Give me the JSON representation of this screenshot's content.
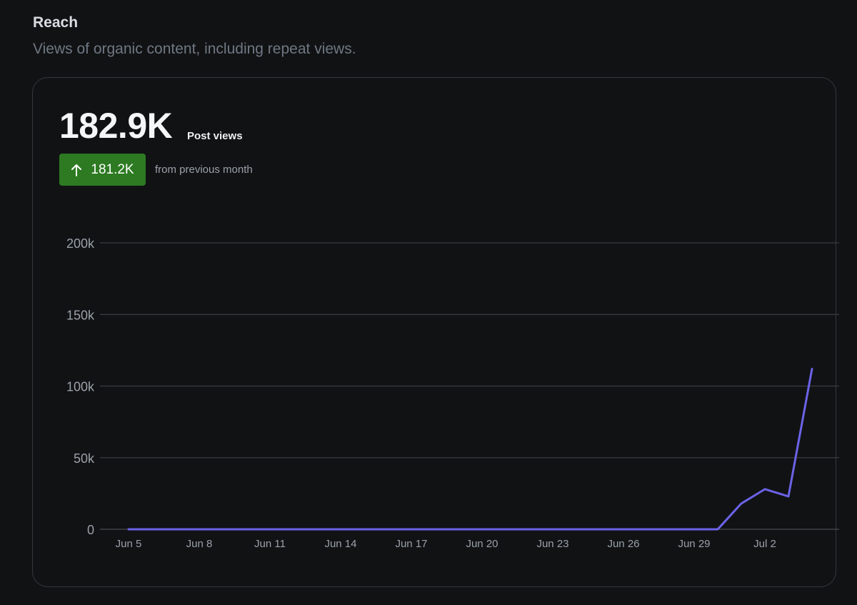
{
  "header": {
    "title": "Reach",
    "subtitle": "Views of organic content, including repeat views."
  },
  "metric": {
    "value": "182.9K",
    "label": "Post views",
    "delta_value": "181.2K",
    "delta_direction": "up",
    "delta_caption": "from previous month"
  },
  "colors": {
    "background": "#111214",
    "line": "#6b63e6",
    "badge": "#2d7a22",
    "grid": "#3a3d42",
    "tick_text": "#9aa1aa"
  },
  "chart_data": {
    "type": "line",
    "ylim": [
      0,
      200000
    ],
    "yticks": [
      0,
      50000,
      100000,
      150000,
      200000
    ],
    "ytick_labels": [
      "0",
      "50k",
      "100k",
      "150k",
      "200k"
    ],
    "xtick_labels": [
      "Jun 5",
      "Jun 8",
      "Jun 11",
      "Jun 14",
      "Jun 17",
      "Jun 20",
      "Jun 23",
      "Jun 26",
      "Jun 29",
      "Jul 2"
    ],
    "grid": true,
    "series": [
      {
        "x": [
          "Jun 5",
          "Jun 6",
          "Jun 7",
          "Jun 8",
          "Jun 9",
          "Jun 10",
          "Jun 11",
          "Jun 12",
          "Jun 13",
          "Jun 14",
          "Jun 15",
          "Jun 16",
          "Jun 17",
          "Jun 18",
          "Jun 19",
          "Jun 20",
          "Jun 21",
          "Jun 22",
          "Jun 23",
          "Jun 24",
          "Jun 25",
          "Jun 26",
          "Jun 27",
          "Jun 28",
          "Jun 29",
          "Jun 30",
          "Jul 1",
          "Jul 2",
          "Jul 3",
          "Jul 4"
        ],
        "values": [
          0,
          0,
          0,
          0,
          0,
          0,
          0,
          0,
          0,
          0,
          0,
          0,
          0,
          0,
          0,
          0,
          0,
          0,
          0,
          0,
          0,
          0,
          0,
          0,
          0,
          0,
          18000,
          28000,
          23000,
          112000
        ]
      }
    ]
  }
}
